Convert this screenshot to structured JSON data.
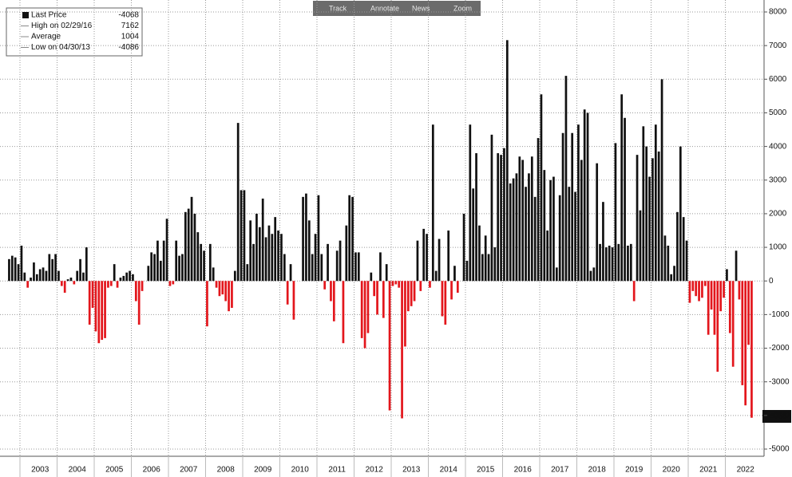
{
  "chart_data": {
    "type": "bar",
    "toolbar": [
      "Track",
      "Annotate",
      "News",
      "Zoom"
    ],
    "legend": [
      {
        "label": "Last Price",
        "value": -4068
      },
      {
        "label": "High on 02/29/16",
        "value": 7162
      },
      {
        "label": "Average",
        "value": 1004
      },
      {
        "label": "Low on 04/30/13",
        "value": -4086
      }
    ],
    "positive_color": "#111111",
    "negative_color": "#e3161c",
    "grid": true,
    "ylim": [
      -5300,
      8200
    ],
    "yticks": [
      8000,
      7000,
      6000,
      5000,
      4000,
      3000,
      2000,
      1000,
      0,
      -1000,
      -2000,
      -3000,
      -4000,
      -5000
    ],
    "categories": [
      null,
      null,
      null,
      null,
      null,
      null,
      null,
      null,
      null,
      null,
      "2003",
      null,
      null,
      null,
      null,
      null,
      null,
      null,
      null,
      null,
      null,
      null,
      "2004",
      null,
      null,
      null,
      null,
      null,
      null,
      null,
      null,
      null,
      null,
      null,
      "2005",
      null,
      null,
      null,
      null,
      null,
      null,
      null,
      null,
      null,
      null,
      null,
      "2006",
      null,
      null,
      null,
      null,
      null,
      null,
      null,
      null,
      null,
      null,
      null,
      "2007",
      null,
      null,
      null,
      null,
      null,
      null,
      null,
      null,
      null,
      null,
      null,
      "2008",
      null,
      null,
      null,
      null,
      null,
      null,
      null,
      null,
      null,
      null,
      null,
      "2009",
      null,
      null,
      null,
      null,
      null,
      null,
      null,
      null,
      null,
      null,
      null,
      "2010",
      null,
      null,
      null,
      null,
      null,
      null,
      null,
      null,
      null,
      null,
      null,
      "2011",
      null,
      null,
      null,
      null,
      null,
      null,
      null,
      null,
      null,
      null,
      null,
      "2012",
      null,
      null,
      null,
      null,
      null,
      null,
      null,
      null,
      null,
      null,
      null,
      "2013",
      null,
      null,
      null,
      null,
      null,
      null,
      null,
      null,
      null,
      null,
      null,
      "2014",
      null,
      null,
      null,
      null,
      null,
      null,
      null,
      null,
      null,
      null,
      null,
      "2015",
      null,
      null,
      null,
      null,
      null,
      null,
      null,
      null,
      null,
      null,
      null,
      "2016",
      null,
      null,
      null,
      null,
      null,
      null,
      null,
      null,
      null,
      null,
      null,
      "2017",
      null,
      null,
      null,
      null,
      null,
      null,
      null,
      null,
      null,
      null,
      null,
      "2018",
      null,
      null,
      null,
      null,
      null,
      null,
      null,
      null,
      null,
      null,
      null,
      "2019",
      null,
      null,
      null,
      null,
      null,
      null,
      null,
      null,
      null,
      null,
      null,
      "2020",
      null,
      null,
      null,
      null,
      null,
      null,
      null,
      null,
      null,
      null,
      null,
      "2021",
      null,
      null,
      null,
      null,
      null,
      null,
      null,
      null,
      null,
      null,
      null,
      "2022",
      null,
      null
    ],
    "values": [
      650,
      750,
      700,
      500,
      1050,
      250,
      -200,
      100,
      550,
      200,
      350,
      400,
      300,
      800,
      650,
      800,
      300,
      -150,
      -350,
      50,
      100,
      -100,
      300,
      650,
      250,
      1000,
      -1300,
      -800,
      -1500,
      -1850,
      -1750,
      -1700,
      -200,
      -150,
      500,
      -200,
      100,
      150,
      250,
      300,
      200,
      -600,
      -1300,
      -300,
      0,
      450,
      850,
      800,
      1200,
      600,
      1200,
      1850,
      -150,
      -100,
      1200,
      750,
      800,
      2050,
      2150,
      2500,
      2000,
      1450,
      1100,
      900,
      -1350,
      1100,
      400,
      -200,
      -450,
      -400,
      -600,
      -900,
      -800,
      300,
      4700,
      2700,
      2700,
      500,
      1800,
      1100,
      2000,
      1600,
      2450,
      1300,
      1650,
      1400,
      1900,
      1500,
      1400,
      800,
      -700,
      500,
      -1150,
      0,
      0,
      2500,
      2600,
      1800,
      800,
      1400,
      2550,
      800,
      -250,
      1100,
      -600,
      -1200,
      900,
      1200,
      -1850,
      1650,
      2550,
      2500,
      850,
      850,
      -1700,
      -2000,
      -1550,
      250,
      -450,
      -1000,
      850,
      -1100,
      500,
      -3850,
      -150,
      -100,
      -200,
      -4086,
      -1950,
      -900,
      -750,
      -600,
      1200,
      -300,
      1550,
      1400,
      -200,
      4650,
      300,
      1250,
      -1050,
      -1300,
      1500,
      -550,
      450,
      -350,
      0,
      2000,
      600,
      4650,
      2750,
      3800,
      1650,
      800,
      1350,
      800,
      4350,
      1000,
      3800,
      3750,
      3950,
      7162,
      2900,
      3050,
      3200,
      3700,
      3600,
      2800,
      3200,
      3700,
      2500,
      4250,
      5550,
      3300,
      1500,
      3000,
      3100,
      400,
      2550,
      4400,
      6100,
      2800,
      4400,
      2650,
      4650,
      3600,
      5100,
      5000,
      300,
      400,
      3500,
      1100,
      2350,
      1000,
      1050,
      1000,
      4100,
      1100,
      5550,
      4850,
      1050,
      1100,
      -600,
      3750,
      2100,
      4600,
      4000,
      3100,
      3650,
      4650,
      3850,
      6000,
      1350,
      1050,
      200,
      450,
      2050,
      4000,
      1900,
      1200,
      -650,
      -300,
      -450,
      -600,
      -500,
      -150,
      -1600,
      -850,
      -1600,
      -2700,
      -900,
      -500,
      350,
      -1550,
      -2550,
      900,
      -550,
      -3100,
      -3700,
      -1900,
      -4068
    ]
  }
}
